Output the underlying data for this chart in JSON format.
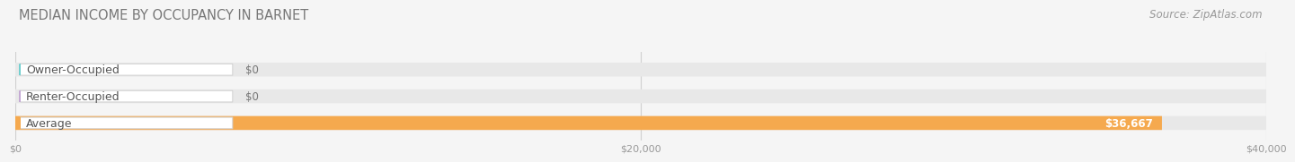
{
  "title": "MEDIAN INCOME BY OCCUPANCY IN BARNET",
  "source": "Source: ZipAtlas.com",
  "categories": [
    "Owner-Occupied",
    "Renter-Occupied",
    "Average"
  ],
  "values": [
    0,
    0,
    36667
  ],
  "bar_colors": [
    "#6ecece",
    "#c4a8d4",
    "#f5a94e"
  ],
  "value_labels": [
    "$0",
    "$0",
    "$36,667"
  ],
  "xlim": [
    0,
    40000
  ],
  "xticks": [
    0,
    20000,
    40000
  ],
  "xtick_labels": [
    "$0",
    "$20,000",
    "$40,000"
  ],
  "background_color": "#f5f5f5",
  "bar_bg_color": "#e8e8e8",
  "title_fontsize": 10.5,
  "source_fontsize": 8.5,
  "label_fontsize": 9,
  "value_fontsize": 8.5
}
